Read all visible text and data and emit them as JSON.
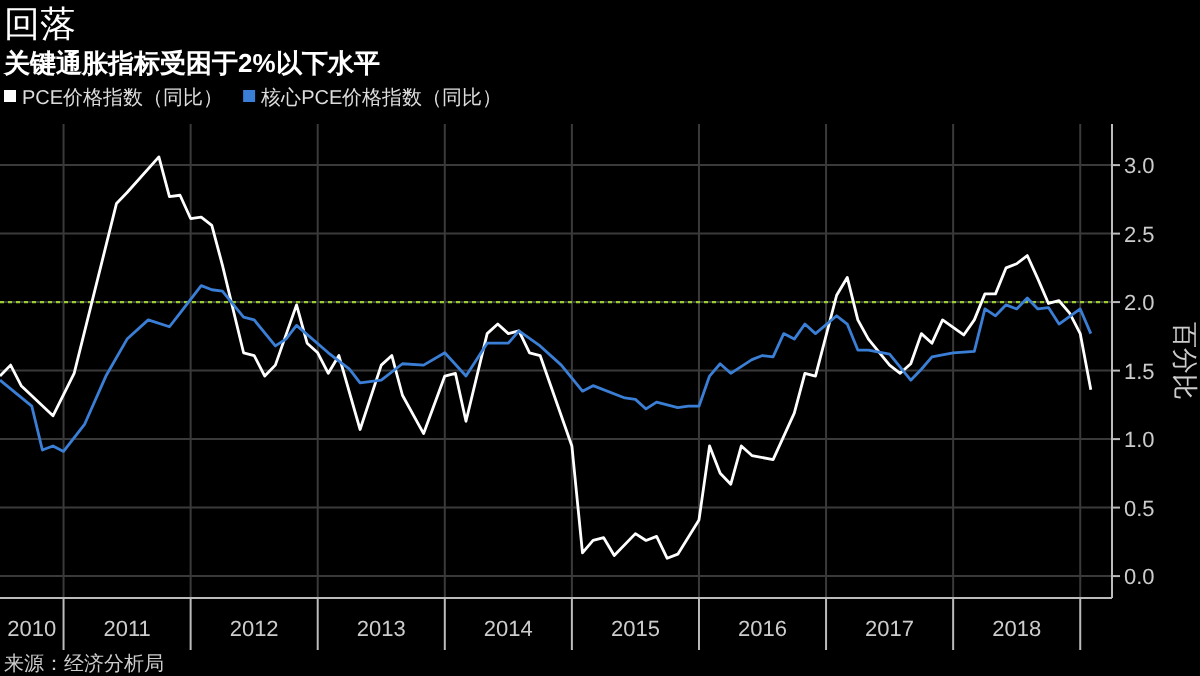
{
  "chart_data": {
    "type": "line",
    "title": "回落",
    "subtitle": "关键通胀指标受困于2%以下水平",
    "ylabel": "百分比",
    "series": [
      {
        "name": "PCE价格指数（同比）",
        "color": "#ffffff",
        "x": [
          "2010-07",
          "2010-08",
          "2010-09",
          "2010-12",
          "2011-02",
          "2011-06",
          "2011-07",
          "2011-10",
          "2011-11",
          "2011-12",
          "2012-01",
          "2012-02",
          "2012-03",
          "2012-04",
          "2012-06",
          "2012-07",
          "2012-08",
          "2012-09",
          "2012-11",
          "2012-12",
          "2013-01",
          "2013-02",
          "2013-03",
          "2013-05",
          "2013-07",
          "2013-08",
          "2013-09",
          "2013-11",
          "2014-01",
          "2014-02",
          "2014-03",
          "2014-05",
          "2014-06",
          "2014-07",
          "2014-08",
          "2014-09",
          "2014-10",
          "2015-01",
          "2015-02",
          "2015-03",
          "2015-04",
          "2015-05",
          "2015-07",
          "2015-08",
          "2015-09",
          "2015-10",
          "2015-11",
          "2016-01",
          "2016-02",
          "2016-03",
          "2016-04",
          "2016-05",
          "2016-06",
          "2016-08",
          "2016-10",
          "2016-11",
          "2016-12",
          "2017-02",
          "2017-03",
          "2017-04",
          "2017-05",
          "2017-07",
          "2017-08",
          "2017-09",
          "2017-10",
          "2017-11",
          "2017-12",
          "2018-02",
          "2018-03",
          "2018-04",
          "2018-05",
          "2018-06",
          "2018-07",
          "2018-08",
          "2018-09",
          "2018-10",
          "2018-11",
          "2018-12",
          "2019-01",
          "2019-02"
        ],
        "values": [
          1.46,
          1.54,
          1.39,
          1.17,
          1.48,
          2.72,
          2.8,
          3.06,
          2.77,
          2.78,
          2.61,
          2.62,
          2.56,
          2.27,
          1.63,
          1.61,
          1.46,
          1.54,
          1.98,
          1.7,
          1.63,
          1.48,
          1.61,
          1.07,
          1.54,
          1.61,
          1.32,
          1.04,
          1.46,
          1.48,
          1.13,
          1.77,
          1.84,
          1.77,
          1.79,
          1.63,
          1.61,
          0.95,
          0.17,
          0.26,
          0.28,
          0.15,
          0.31,
          0.26,
          0.29,
          0.13,
          0.16,
          0.41,
          0.95,
          0.75,
          0.67,
          0.95,
          0.88,
          0.85,
          1.19,
          1.48,
          1.46,
          2.05,
          2.18,
          1.87,
          1.73,
          1.54,
          1.48,
          1.55,
          1.77,
          1.7,
          1.87,
          1.76,
          1.87,
          2.06,
          2.06,
          2.25,
          2.28,
          2.34,
          2.17,
          1.99,
          2.01,
          1.92,
          1.77,
          1.36
        ]
      },
      {
        "name": "核心PCE价格指数（同比）",
        "color": "#3a7fd5",
        "x": [
          "2010-07",
          "2010-10",
          "2010-11",
          "2010-12",
          "2011-01",
          "2011-03",
          "2011-05",
          "2011-07",
          "2011-09",
          "2011-11",
          "2011-12",
          "2012-02",
          "2012-03",
          "2012-04",
          "2012-06",
          "2012-07",
          "2012-09",
          "2012-10",
          "2012-11",
          "2013-02",
          "2013-04",
          "2013-05",
          "2013-07",
          "2013-09",
          "2013-11",
          "2014-01",
          "2014-03",
          "2014-05",
          "2014-07",
          "2014-08",
          "2014-10",
          "2014-12",
          "2015-02",
          "2015-03",
          "2015-06",
          "2015-07",
          "2015-08",
          "2015-09",
          "2015-11",
          "2015-12",
          "2016-01",
          "2016-02",
          "2016-03",
          "2016-04",
          "2016-06",
          "2016-07",
          "2016-08",
          "2016-09",
          "2016-10",
          "2016-11",
          "2016-12",
          "2017-02",
          "2017-03",
          "2017-04",
          "2017-05",
          "2017-07",
          "2017-09",
          "2017-10",
          "2017-11",
          "2018-01",
          "2018-03",
          "2018-04",
          "2018-05",
          "2018-06",
          "2018-07",
          "2018-08",
          "2018-09",
          "2018-10",
          "2018-11",
          "2019-01",
          "2019-02"
        ],
        "values": [
          1.43,
          1.24,
          0.92,
          0.95,
          0.91,
          1.11,
          1.46,
          1.73,
          1.87,
          1.82,
          1.92,
          2.12,
          2.09,
          2.08,
          1.89,
          1.87,
          1.68,
          1.73,
          1.83,
          1.63,
          1.51,
          1.41,
          1.43,
          1.55,
          1.54,
          1.63,
          1.46,
          1.7,
          1.7,
          1.79,
          1.68,
          1.54,
          1.35,
          1.39,
          1.3,
          1.29,
          1.22,
          1.27,
          1.23,
          1.24,
          1.24,
          1.46,
          1.55,
          1.48,
          1.58,
          1.61,
          1.6,
          1.77,
          1.73,
          1.84,
          1.77,
          1.9,
          1.84,
          1.65,
          1.65,
          1.62,
          1.43,
          1.51,
          1.6,
          1.63,
          1.64,
          1.95,
          1.9,
          1.98,
          1.95,
          2.03,
          1.95,
          1.96,
          1.84,
          1.95,
          1.77
        ]
      }
    ],
    "xlim": [
      "2010-07",
      "2019-04"
    ],
    "xticks": [
      {
        "value": "2010-10",
        "label": "2010"
      },
      {
        "value": "2011-01",
        "label": null
      },
      {
        "value": "2011-07",
        "label": "2011"
      },
      {
        "value": "2012-01",
        "label": null
      },
      {
        "value": "2012-07",
        "label": "2012"
      },
      {
        "value": "2013-01",
        "label": null
      },
      {
        "value": "2013-07",
        "label": "2013"
      },
      {
        "value": "2014-01",
        "label": null
      },
      {
        "value": "2014-07",
        "label": "2014"
      },
      {
        "value": "2015-01",
        "label": null
      },
      {
        "value": "2015-07",
        "label": "2015"
      },
      {
        "value": "2016-01",
        "label": null
      },
      {
        "value": "2016-07",
        "label": "2016"
      },
      {
        "value": "2017-01",
        "label": null
      },
      {
        "value": "2017-07",
        "label": "2017"
      },
      {
        "value": "2018-01",
        "label": null
      },
      {
        "value": "2018-07",
        "label": "2018"
      },
      {
        "value": "2019-01",
        "label": null
      }
    ],
    "ylim": [
      -0.16,
      3.3
    ],
    "yticks": [
      {
        "value": 0,
        "label": "0.0"
      },
      {
        "value": 0.5,
        "label": "0.5"
      },
      {
        "value": 1,
        "label": "1.0"
      },
      {
        "value": 1.5,
        "label": "1.5"
      },
      {
        "value": 2,
        "label": "2.0"
      },
      {
        "value": 2.5,
        "label": "2.5"
      },
      {
        "value": 3,
        "label": "3.0"
      }
    ],
    "ref_lines": [
      {
        "axis": "y",
        "value": 2,
        "color": "#9acd32",
        "line_style": "dotted"
      }
    ],
    "grid": true,
    "legend": "top left",
    "marker": "none",
    "line_style": "solid",
    "annotations": [
      "来源：经济分析局"
    ]
  }
}
